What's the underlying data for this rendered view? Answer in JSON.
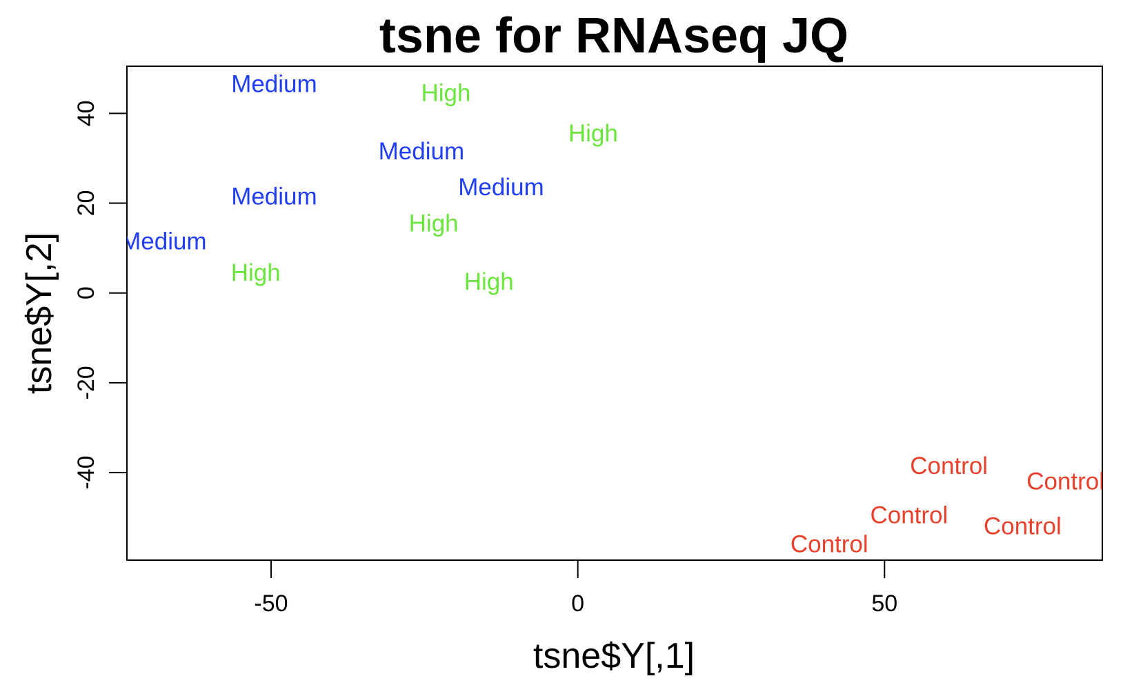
{
  "chart_data": {
    "type": "scatter",
    "title": "tsne for RNAseq JQ",
    "xlabel": "tsne$Y[,1]",
    "ylabel": "tsne$Y[,2]",
    "xlim": [
      -73.5,
      85.5
    ],
    "ylim": [
      -59.5,
      50.5
    ],
    "xticks": [
      -50,
      0,
      50
    ],
    "yticks": [
      -40,
      -20,
      0,
      20,
      40
    ],
    "grid": false,
    "legend": "none",
    "colors": {
      "Medium": "#1f3ef5",
      "High": "#6ae53c",
      "Control": "#e8402b"
    },
    "points": [
      {
        "label": "Medium",
        "x": -49.5,
        "y": 46.5
      },
      {
        "label": "High",
        "x": -21.5,
        "y": 44.5
      },
      {
        "label": "High",
        "x": 2.5,
        "y": 35.5
      },
      {
        "label": "Medium",
        "x": -25.5,
        "y": 31.5
      },
      {
        "label": "Medium",
        "x": -12.5,
        "y": 23.5
      },
      {
        "label": "Medium",
        "x": -49.5,
        "y": 21.5
      },
      {
        "label": "High",
        "x": -23.5,
        "y": 15.5
      },
      {
        "label": "Medium",
        "x": -67.5,
        "y": 11.5
      },
      {
        "label": "High",
        "x": -52.5,
        "y": 4.5
      },
      {
        "label": "High",
        "x": -14.5,
        "y": 2.5
      },
      {
        "label": "Control",
        "x": 60.5,
        "y": -38.5
      },
      {
        "label": "Control",
        "x": 79.5,
        "y": -42.0
      },
      {
        "label": "Control",
        "x": 54.0,
        "y": -49.5
      },
      {
        "label": "Control",
        "x": 72.5,
        "y": -52.0
      },
      {
        "label": "Control",
        "x": 41.0,
        "y": -56.0
      }
    ]
  }
}
